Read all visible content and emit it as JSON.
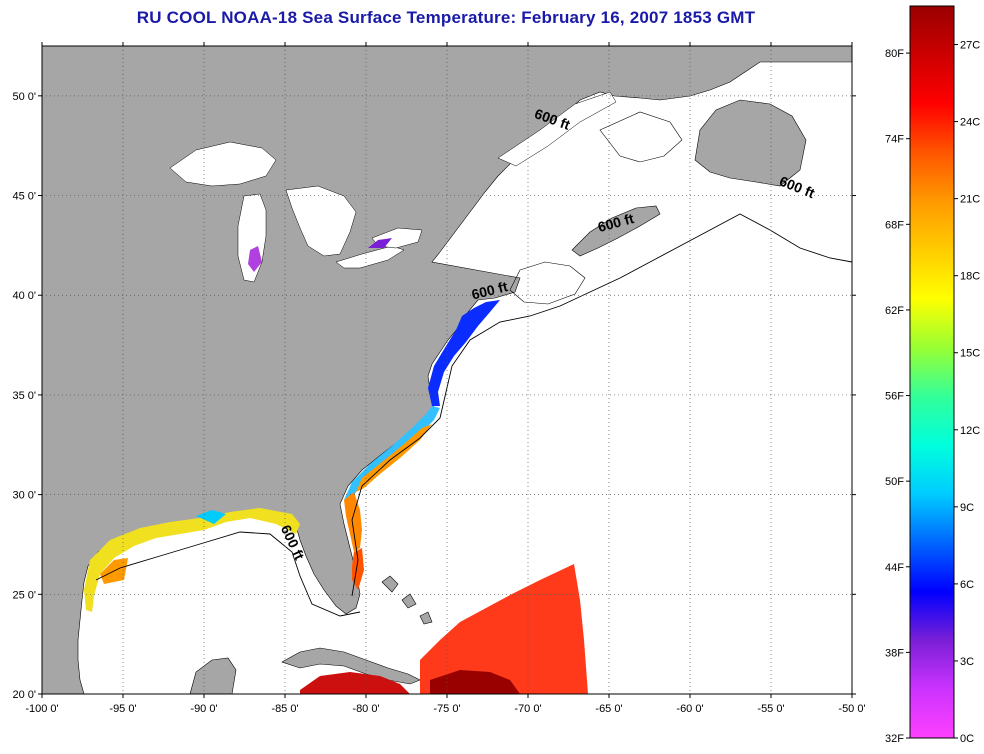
{
  "title": "RU COOL  NOAA-18  Sea Surface Temperature:  February 16, 2007 1853 GMT",
  "map": {
    "lon_range": [
      -100,
      -50
    ],
    "lat_range": [
      20,
      52.5
    ],
    "x_ticks": [
      "-100 0'",
      "-95 0'",
      "-90 0'",
      "-85 0'",
      "-80 0'",
      "-75 0'",
      "-70 0'",
      "-65 0'",
      "-60 0'",
      "-55 0'",
      "-50 0'"
    ],
    "x_tick_values": [
      -100,
      -95,
      -90,
      -85,
      -80,
      -75,
      -70,
      -65,
      -60,
      -55,
      -50
    ],
    "y_ticks": [
      "20 0'",
      "25 0'",
      "30 0'",
      "35 0'",
      "40 0'",
      "45 0'",
      "50 0'"
    ],
    "y_tick_values": [
      20,
      25,
      30,
      35,
      40,
      45,
      50
    ],
    "grid": "dotted",
    "land_color": "#a6a6a6",
    "no_data_color": "#ffffff",
    "contour": "600 ft",
    "contour_labels": [
      {
        "text": "600 ft",
        "lon": -68.6,
        "lat": 48.6
      },
      {
        "text": "600 ft",
        "lon": -53.5,
        "lat": 45.2
      },
      {
        "text": "600 ft",
        "lon": -64.5,
        "lat": 43.4
      },
      {
        "text": "600 ft",
        "lon": -72.3,
        "lat": 40.0
      },
      {
        "text": "600 ft",
        "lon": -84.8,
        "lat": 27.5
      }
    ]
  },
  "colorbar": {
    "fahrenheit_labels": [
      "80F",
      "74F",
      "68F",
      "62F",
      "56F",
      "50F",
      "44F",
      "38F",
      "32F"
    ],
    "fahrenheit_values": [
      80,
      74,
      68,
      62,
      56,
      50,
      44,
      38,
      32
    ],
    "celsius_labels": [
      "27C",
      "24C",
      "21C",
      "18C",
      "15C",
      "12C",
      "9C",
      "6C",
      "3C",
      "0C"
    ],
    "celsius_values": [
      27,
      24,
      21,
      18,
      15,
      12,
      9,
      6,
      3,
      0
    ],
    "range_c": [
      0,
      28.5
    ],
    "colors": [
      "#ff40ff",
      "#cc33ff",
      "#7a1fd6",
      "#0000ff",
      "#0066ff",
      "#00ccff",
      "#00ffdd",
      "#33ff99",
      "#99ff33",
      "#ffff00",
      "#ffcc00",
      "#ff9900",
      "#ff5500",
      "#ff0000",
      "#cc0000",
      "#990000"
    ]
  }
}
